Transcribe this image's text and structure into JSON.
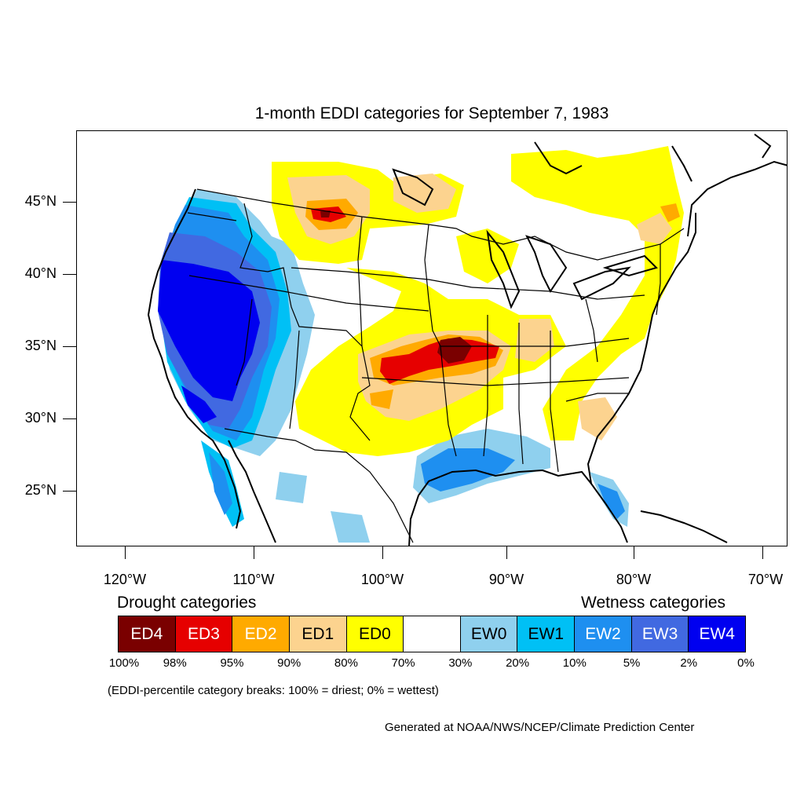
{
  "title": "1-month EDDI categories for September 7, 1983",
  "latitudes": [
    "45°N",
    "40°N",
    "35°N",
    "30°N",
    "25°N"
  ],
  "longitudes": [
    "120°W",
    "110°W",
    "100°W",
    "90°W",
    "80°W",
    "70°W"
  ],
  "legend": {
    "drought_heading": "Drought categories",
    "wetness_heading": "Wetness categories",
    "categories": [
      {
        "label": "ED4",
        "color": "#7a0000",
        "text_color": "#ffffff"
      },
      {
        "label": "ED3",
        "color": "#e60000",
        "text_color": "#ffffff"
      },
      {
        "label": "ED2",
        "color": "#ffaa00",
        "text_color": "#ffffff"
      },
      {
        "label": "ED1",
        "color": "#fcd38f",
        "text_color": "#000000"
      },
      {
        "label": "ED0",
        "color": "#ffff00",
        "text_color": "#000000"
      },
      {
        "label": "",
        "color": "#ffffff",
        "text_color": "#000000"
      },
      {
        "label": "EW0",
        "color": "#8fd0ee",
        "text_color": "#000000"
      },
      {
        "label": "EW1",
        "color": "#00c0f5",
        "text_color": "#000000"
      },
      {
        "label": "EW2",
        "color": "#1e8ff0",
        "text_color": "#ffffff"
      },
      {
        "label": "EW3",
        "color": "#4169e1",
        "text_color": "#ffffff"
      },
      {
        "label": "EW4",
        "color": "#0000f0",
        "text_color": "#ffffff"
      }
    ],
    "breaks": [
      "100%",
      "98%",
      "95%",
      "90%",
      "80%",
      "70%",
      "30%",
      "20%",
      "10%",
      "5%",
      "2%",
      "0%"
    ]
  },
  "note": "(EDDI-percentile category breaks: 100% = driest; 0% = wettest)",
  "credit": "Generated at NOAA/NWS/NCEP/Climate Prediction Center"
}
